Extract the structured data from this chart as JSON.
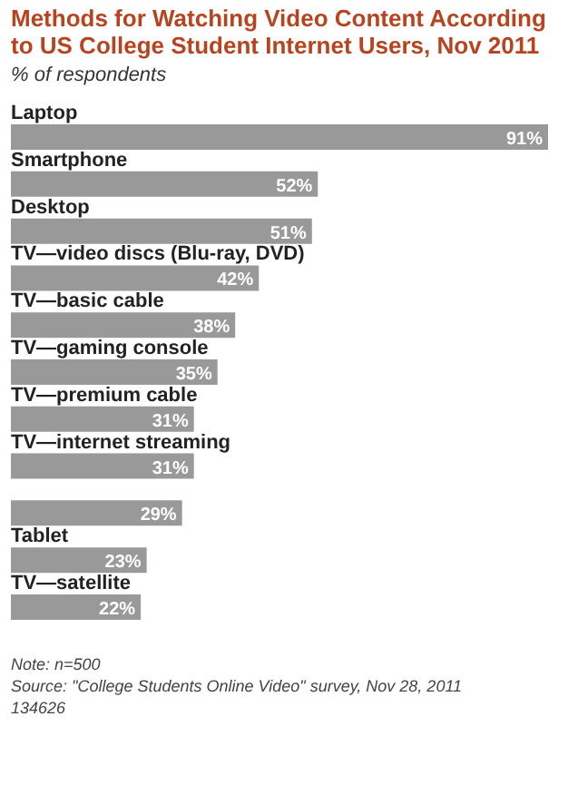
{
  "chart_data": {
    "type": "bar",
    "orientation": "horizontal",
    "title": "Methods for Watching Video Content According to US College Student Internet Users, Nov 2011",
    "subtitle": "% of respondents",
    "categories": [
      "Laptop",
      "Smartphone",
      "Desktop",
      "TV—video discs (Blu-ray, DVD)",
      "TV—basic cable",
      "TV—gaming console",
      "TV—premium cable",
      "TV—internet streaming",
      null,
      "Tablet",
      "TV—satellite"
    ],
    "values": [
      91,
      52,
      51,
      42,
      38,
      35,
      31,
      31,
      29,
      23,
      22
    ],
    "value_labels": [
      "91%",
      "52%",
      "51%",
      "42%",
      "38%",
      "35%",
      "31%",
      "31%",
      "29%",
      "23%",
      "22%"
    ],
    "color": "#999999",
    "annotations": [
      "Note: n=500",
      "Source: \"College Students Online Video\" survey, Nov 28, 2011",
      "134626"
    ]
  }
}
